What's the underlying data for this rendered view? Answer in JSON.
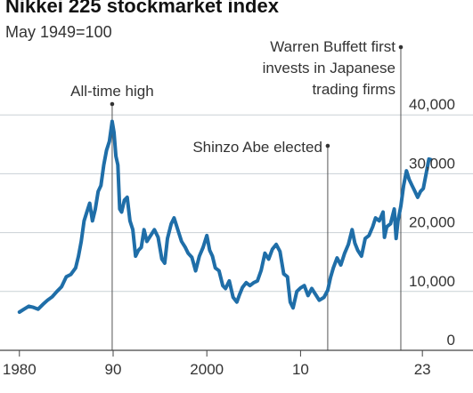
{
  "chart_data": {
    "type": "line",
    "title": "Nikkei 225 stockmarket index",
    "subtitle": "May 1949=100",
    "xlim": [
      1978.5,
      2026.5
    ],
    "ylim": [
      0,
      42000
    ],
    "x_ticks": [
      {
        "value": 1980,
        "label": "1980"
      },
      {
        "value": 1990,
        "label": "90"
      },
      {
        "value": 2000,
        "label": "2000"
      },
      {
        "value": 2010,
        "label": "10"
      },
      {
        "value": 2023,
        "label": "23"
      }
    ],
    "y_ticks": [
      {
        "value": 0,
        "label": "0"
      },
      {
        "value": 10000,
        "label": "10,000"
      },
      {
        "value": 20000,
        "label": "20,000"
      },
      {
        "value": 30000,
        "label": "30,000"
      },
      {
        "value": 40000,
        "label": "40,000"
      }
    ],
    "grid": "horizontal",
    "color": "#1f6ea8",
    "annotations": [
      {
        "x": 1989.9,
        "y": 38900,
        "lines": [
          "All-time high"
        ]
      },
      {
        "x": 2012.9,
        "y": 10200,
        "lines": [
          "Shinzo Abe elected"
        ]
      },
      {
        "x": 2020.7,
        "y": 22800,
        "lines": [
          "Warren Buffett first",
          "invests in Japanese",
          "trading firms"
        ]
      }
    ],
    "series": [
      {
        "x": [
          1980.0,
          1980.5,
          1981.0,
          1981.5,
          1982.0,
          1982.5,
          1983.0,
          1983.5,
          1984.0,
          1984.5,
          1985.0,
          1985.5,
          1986.0,
          1986.3,
          1986.6,
          1986.9,
          1987.2,
          1987.5,
          1987.8,
          1988.1,
          1988.4,
          1988.7,
          1989.0,
          1989.3,
          1989.6,
          1989.9,
          1990.1,
          1990.3,
          1990.5,
          1990.7,
          1990.9,
          1991.2,
          1991.5,
          1991.8,
          1992.1,
          1992.4,
          1992.7,
          1993.0,
          1993.3,
          1993.6,
          1994.0,
          1994.4,
          1994.8,
          1995.2,
          1995.5,
          1995.8,
          1996.2,
          1996.5,
          1996.9,
          1997.3,
          1997.7,
          1998.0,
          1998.4,
          1998.8,
          1999.2,
          1999.6,
          2000.0,
          2000.3,
          2000.6,
          2000.9,
          2001.3,
          2001.7,
          2002.0,
          2002.4,
          2002.8,
          2003.2,
          2003.5,
          2003.8,
          2004.2,
          2004.6,
          2005.0,
          2005.4,
          2005.8,
          2006.2,
          2006.6,
          2007.0,
          2007.4,
          2007.8,
          2008.2,
          2008.6,
          2008.9,
          2009.2,
          2009.6,
          2010.0,
          2010.4,
          2010.8,
          2011.2,
          2011.6,
          2012.0,
          2012.5,
          2012.9,
          2013.2,
          2013.5,
          2013.9,
          2014.3,
          2014.7,
          2015.1,
          2015.5,
          2015.8,
          2016.1,
          2016.5,
          2016.9,
          2017.3,
          2017.7,
          2018.0,
          2018.4,
          2018.8,
          2018.95,
          2019.2,
          2019.6,
          2020.0,
          2020.2,
          2020.4,
          2020.7,
          2021.0,
          2021.3,
          2021.6,
          2021.9,
          2022.2,
          2022.5,
          2022.8,
          2023.1,
          2023.4,
          2023.7,
          2023.9
        ],
        "y": [
          6500,
          7000,
          7500,
          7300,
          7000,
          7800,
          8500,
          9100,
          10000,
          10800,
          12500,
          12900,
          14000,
          16000,
          18500,
          22000,
          23500,
          25000,
          22000,
          24000,
          27000,
          28000,
          31500,
          34000,
          35500,
          38900,
          37000,
          33000,
          31500,
          24000,
          23500,
          25500,
          26000,
          22000,
          20500,
          16000,
          17000,
          17500,
          20500,
          18500,
          19500,
          20500,
          19200,
          15500,
          14800,
          19000,
          21500,
          22500,
          20500,
          18500,
          17500,
          16500,
          15800,
          13500,
          16000,
          17500,
          19500,
          17000,
          16000,
          14000,
          13500,
          11000,
          10500,
          11800,
          9000,
          8200,
          9500,
          10700,
          11500,
          11000,
          11500,
          11800,
          13600,
          16500,
          15500,
          17200,
          18000,
          16800,
          13000,
          12500,
          8200,
          7200,
          10000,
          10600,
          11000,
          9300,
          10500,
          9500,
          8500,
          9000,
          10200,
          12400,
          14000,
          15700,
          14500,
          16500,
          18000,
          20500,
          18200,
          17000,
          16000,
          19000,
          19500,
          21000,
          22500,
          22000,
          23500,
          19200,
          21000,
          21500,
          24000,
          19000,
          22000,
          24500,
          28000,
          30500,
          29000,
          28000,
          27000,
          26000,
          27000,
          27500,
          30000,
          32500,
          32400
        ]
      }
    ]
  }
}
